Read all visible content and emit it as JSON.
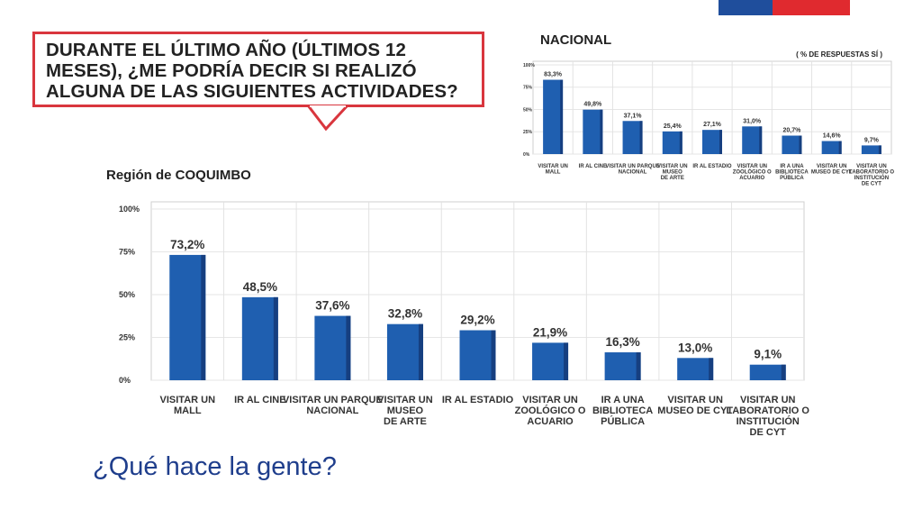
{
  "colors": {
    "bar": "#1f5fb0",
    "bar_side": "#163f80",
    "accent_red": "#d9363e",
    "title_blue": "#1f3e8c"
  },
  "bubble": {
    "question": "Durante el último año (últimos 12 meses), ¿me podría decir si realizó alguna de las siguientes actividades?"
  },
  "nacional": {
    "heading": "NACIONAL",
    "note": "( % DE RESPUESTAS SÍ )"
  },
  "region": {
    "heading": "Región de COQUIMBO"
  },
  "footer": {
    "title": "¿Qué hace la gente?"
  },
  "chart_data": [
    {
      "type": "bar",
      "title": "NACIONAL",
      "categories": [
        "VISITAR UN MALL",
        "IR AL CINE",
        "VISITAR UN PARQUE NACIONAL",
        "VISITAR UN MUSEO DE ARTE",
        "IR AL ESTADIO",
        "VISITAR UN ZOOLÓGICO O ACUARIO",
        "IR A UNA BIBLIOTECA PÚBLICA",
        "VISITAR UN MUSEO DE CYT",
        "VISITAR UN LABORATORIO O INSTITUCIÓN DE CYT"
      ],
      "values": [
        83.3,
        49.8,
        37.1,
        25.4,
        27.1,
        31.0,
        20.7,
        14.6,
        9.7
      ],
      "value_labels": [
        "83,3%",
        "49,8%",
        "37,1%",
        "25,4%",
        "27,1%",
        "31,0%",
        "20,7%",
        "14,6%",
        "9,7%"
      ],
      "ylim": [
        0,
        100
      ],
      "yticks": [
        "0%",
        "25%",
        "50%",
        "75%",
        "100%"
      ],
      "grid": true
    },
    {
      "type": "bar",
      "title": "Región de COQUIMBO",
      "categories": [
        "VISITAR UN MALL",
        "IR AL CINE",
        "VISITAR UN PARQUE NACIONAL",
        "VISITAR UN MUSEO DE ARTE",
        "IR AL ESTADIO",
        "VISITAR UN ZOOLÓGICO O ACUARIO",
        "IR A UNA BIBLIOTECA PÚBLICA",
        "VISITAR UN MUSEO DE CYT",
        "VISITAR UN LABORATORIO O INSTITUCIÓN DE CYT"
      ],
      "values": [
        73.2,
        48.5,
        37.6,
        32.8,
        29.2,
        21.9,
        16.3,
        13.0,
        9.1
      ],
      "value_labels": [
        "73,2%",
        "48,5%",
        "37,6%",
        "32,8%",
        "29,2%",
        "21,9%",
        "16,3%",
        "13,0%",
        "9,1%"
      ],
      "ylim": [
        0,
        100
      ],
      "yticks": [
        "0%",
        "25%",
        "50%",
        "75%",
        "100%"
      ],
      "grid": true
    }
  ]
}
